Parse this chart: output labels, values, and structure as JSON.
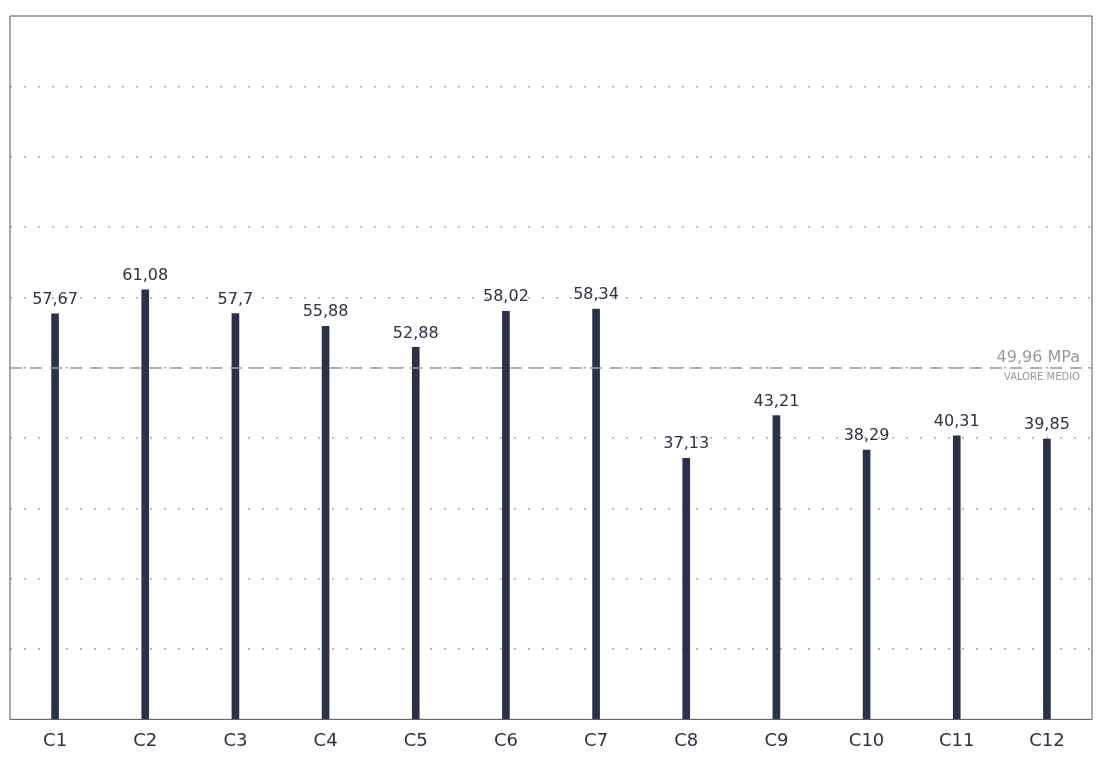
{
  "chart_data": {
    "type": "bar",
    "categories": [
      "C1",
      "C2",
      "C3",
      "C4",
      "C5",
      "C6",
      "C7",
      "C8",
      "C9",
      "C10",
      "C11",
      "C12"
    ],
    "values": [
      57.67,
      61.08,
      57.7,
      55.88,
      52.88,
      58.02,
      58.34,
      37.13,
      43.21,
      38.29,
      40.31,
      39.85
    ],
    "value_labels": [
      "57,67",
      "61,08",
      "57,7",
      "55,88",
      "52,88",
      "58,02",
      "58,34",
      "37,13",
      "43,21",
      "38,29",
      "40,31",
      "39,85"
    ],
    "color": "#2b3146",
    "ylim": [
      0,
      100
    ],
    "yticks": [
      {
        "value": 10,
        "label": null
      },
      {
        "value": 20,
        "label": null
      },
      {
        "value": 30,
        "label": null
      },
      {
        "value": 40,
        "label": null
      },
      {
        "value": 50,
        "label": null
      },
      {
        "value": 60,
        "label": null
      },
      {
        "value": 70,
        "label": null
      },
      {
        "value": 80,
        "label": null
      },
      {
        "value": 90,
        "label": null
      }
    ],
    "tick_labels": "x",
    "grid": "y",
    "ref_lines": [
      {
        "axis": "y",
        "value": 49.96,
        "label": "49,96 MPa",
        "color": "#999999",
        "line_style": "dashed"
      }
    ],
    "annotations": [
      "VALORE MEDIO"
    ]
  }
}
